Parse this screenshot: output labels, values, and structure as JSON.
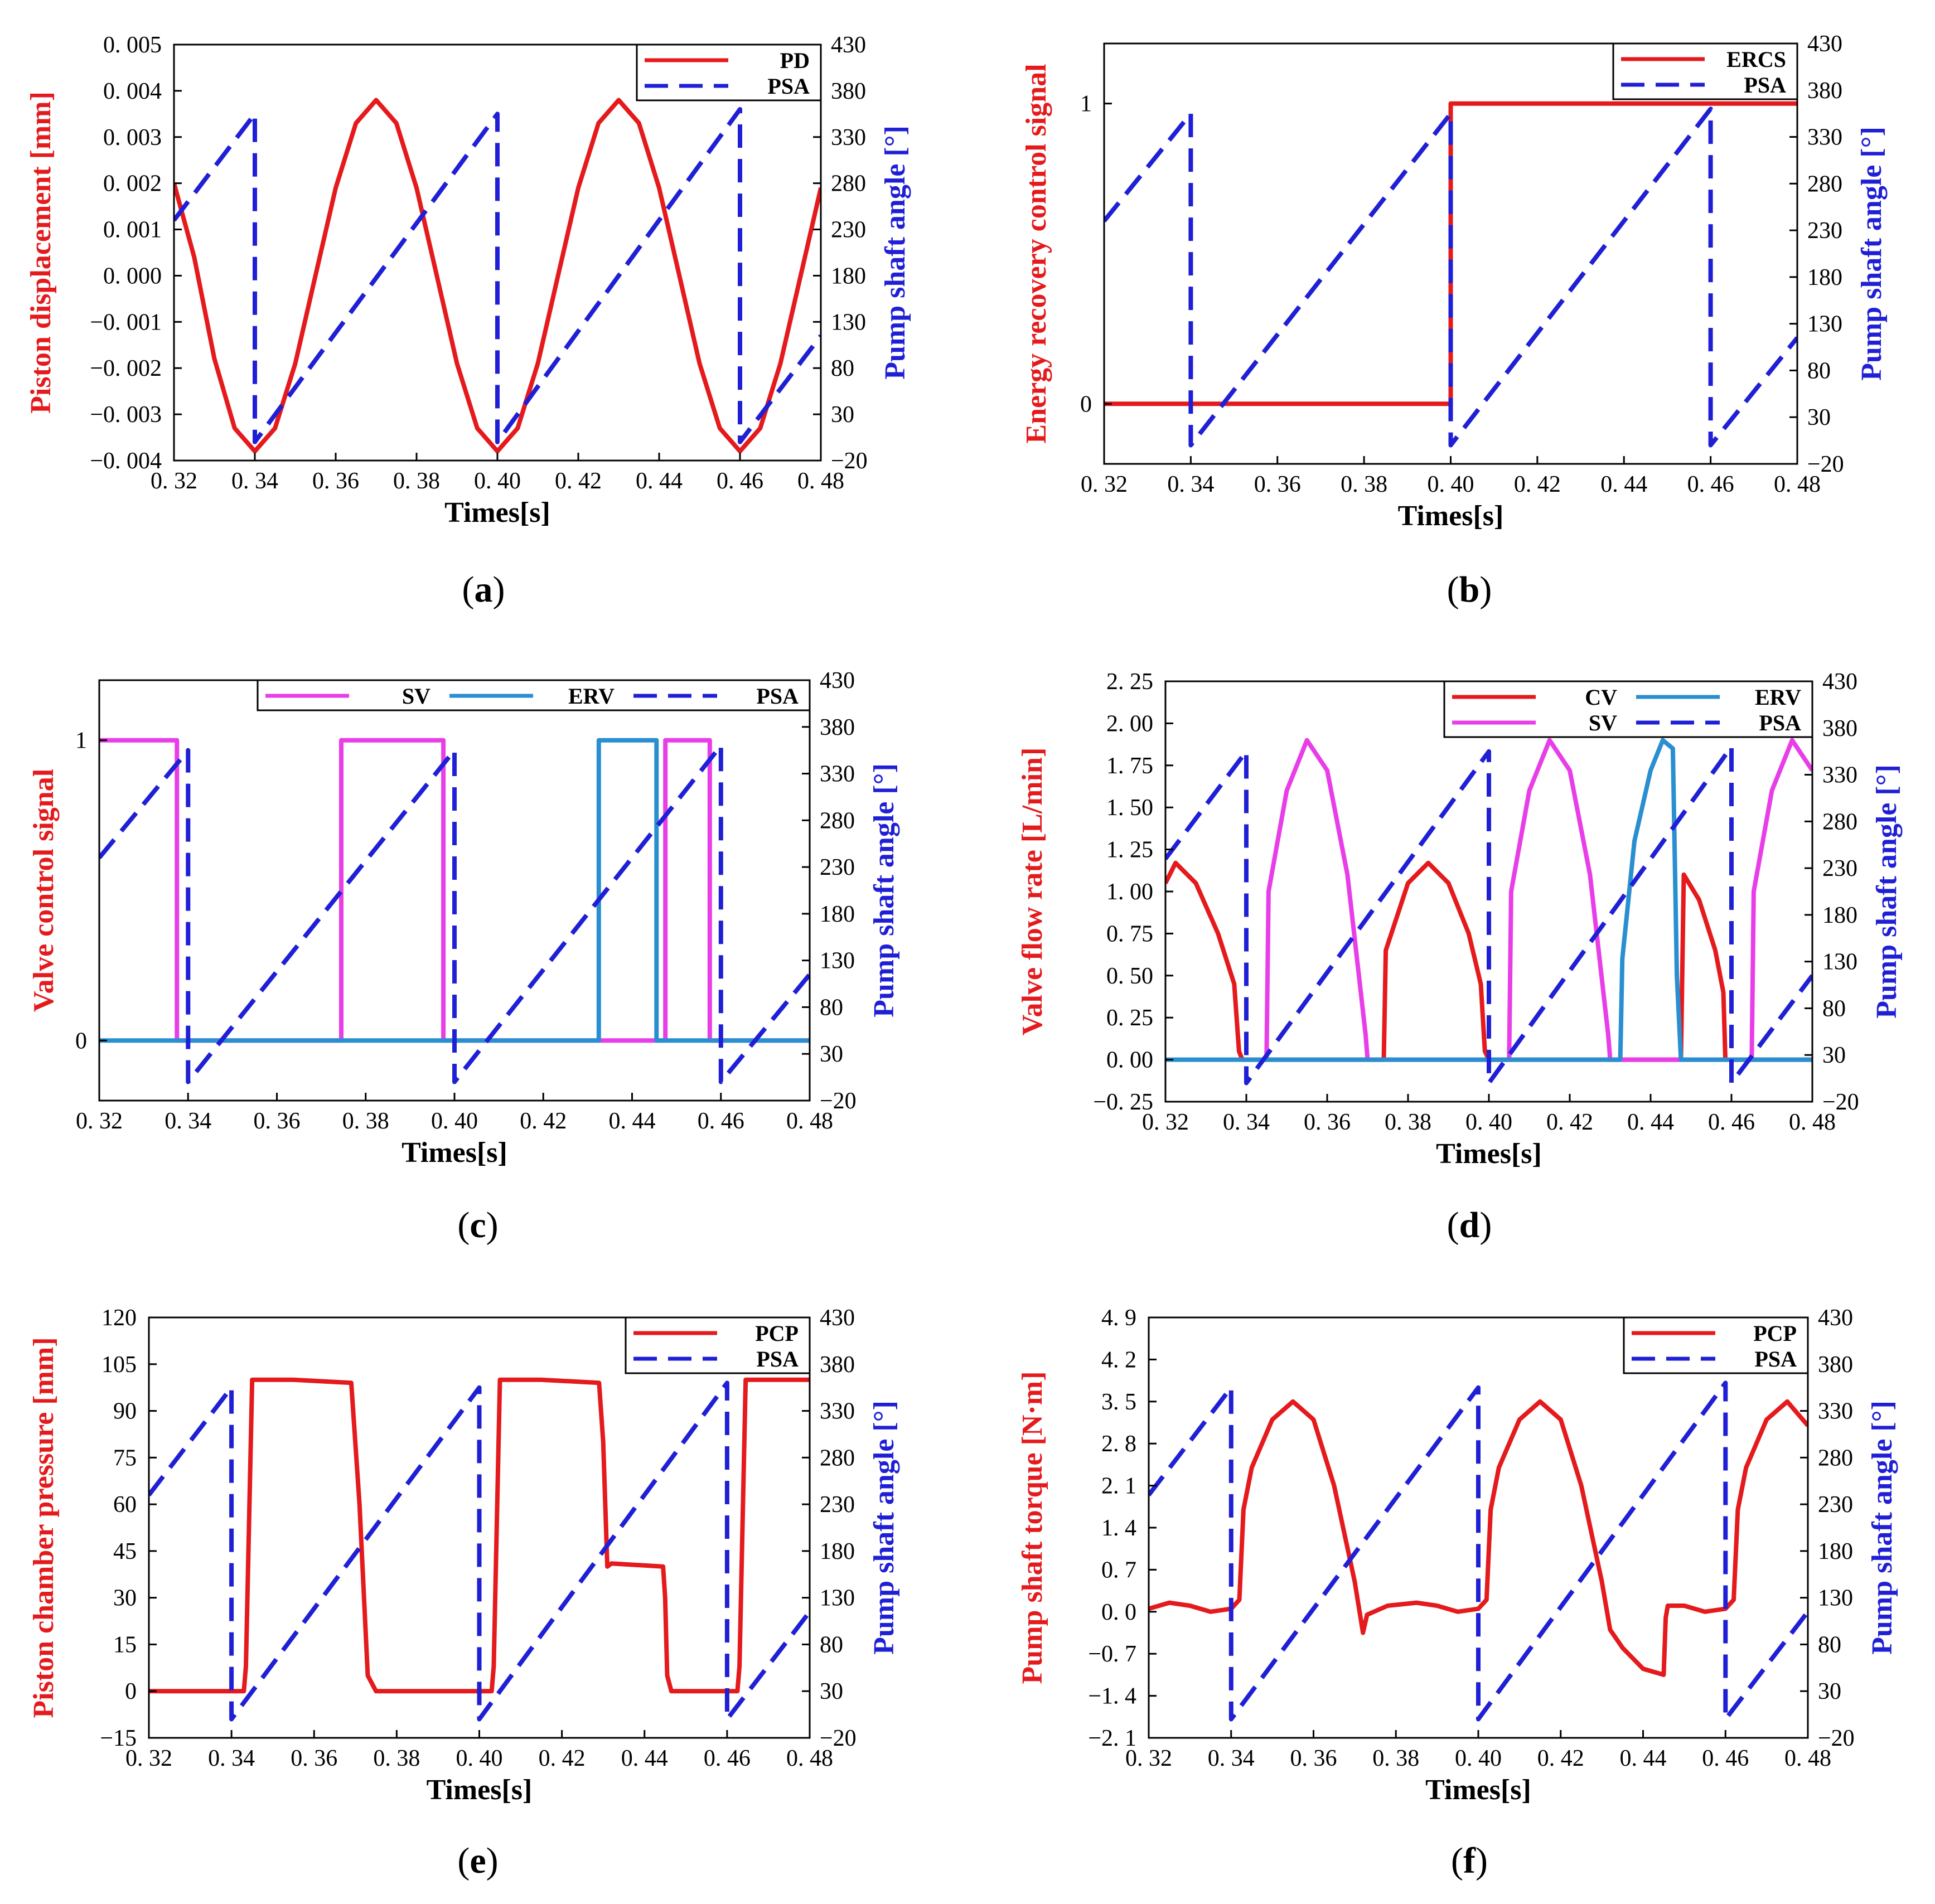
{
  "colors": {
    "red": "#e41a1c",
    "blue": "#1f1fd6",
    "magenta": "#e83ee8",
    "cyan": "#2a8fd0",
    "axis": "#000000"
  },
  "xlabel": "Times[s]",
  "right_ylabel": "Pump shaft angle [°]",
  "x_ticks": [
    "0. 32",
    "0. 34",
    "0. 36",
    "0. 38",
    "0. 40",
    "0. 42",
    "0. 44",
    "0. 46",
    "0. 48"
  ],
  "right_ticks": [
    "430",
    "380",
    "330",
    "280",
    "230",
    "180",
    "130",
    "80",
    "30",
    "−20"
  ],
  "chart_data": [
    {
      "id": "a",
      "caption": "a",
      "type": "line",
      "ylabel": "Piston displacement [mm]",
      "xlim": [
        0.32,
        0.48
      ],
      "ylim": [
        -0.004,
        0.005
      ],
      "y2lim": [
        -20,
        430
      ],
      "y_ticks": [
        "0. 005",
        "0. 004",
        "0. 003",
        "0. 002",
        "0. 001",
        "0. 000",
        "−0. 001",
        "−0. 002",
        "−0. 003",
        "−0. 004"
      ],
      "legend": [
        {
          "name": "PD",
          "style": "solid",
          "color": "#e41a1c"
        },
        {
          "name": "PSA",
          "style": "dash",
          "color": "#1f1fd6"
        }
      ],
      "legend_columns": 1,
      "series": [
        {
          "name": "PD",
          "axis": "left",
          "style": "solid",
          "color": "#e41a1c",
          "x": [
            0.32,
            0.325,
            0.33,
            0.335,
            0.34,
            0.345,
            0.35,
            0.355,
            0.36,
            0.365,
            0.37,
            0.375,
            0.38,
            0.385,
            0.39,
            0.395,
            0.4,
            0.405,
            0.41,
            0.415,
            0.42,
            0.425,
            0.43,
            0.435,
            0.44,
            0.445,
            0.45,
            0.455,
            0.46,
            0.465,
            0.47,
            0.475,
            0.48
          ],
          "y": [
            0.002,
            0.0004,
            -0.0018,
            -0.0033,
            -0.0038,
            -0.0033,
            -0.0019,
            0.0,
            0.0019,
            0.0033,
            0.0038,
            0.0033,
            0.0019,
            0.0,
            -0.0019,
            -0.0033,
            -0.0038,
            -0.0033,
            -0.0019,
            0.0,
            0.0019,
            0.0033,
            0.0038,
            0.0033,
            0.0019,
            0.0,
            -0.0019,
            -0.0033,
            -0.0038,
            -0.0033,
            -0.0019,
            0.0,
            0.0019
          ]
        },
        {
          "name": "PSA",
          "axis": "right",
          "style": "dash",
          "color": "#1f1fd6",
          "x": [
            0.32,
            0.34,
            0.34,
            0.4,
            0.4,
            0.46,
            0.46,
            0.48
          ],
          "y": [
            240,
            355,
            0,
            355,
            0,
            360,
            0,
            115
          ]
        }
      ]
    },
    {
      "id": "b",
      "caption": "b",
      "type": "line",
      "ylabel": "Energy recovery control signal",
      "xlim": [
        0.32,
        0.48
      ],
      "ylim": [
        -0.2,
        1.2
      ],
      "y2lim": [
        -20,
        430
      ],
      "y_ticks": [
        "1",
        "0"
      ],
      "y_tick_values": [
        1,
        0
      ],
      "legend": [
        {
          "name": "ERCS",
          "style": "solid",
          "color": "#e41a1c"
        },
        {
          "name": "PSA",
          "style": "dash",
          "color": "#1f1fd6"
        }
      ],
      "legend_columns": 1,
      "series": [
        {
          "name": "ERCS",
          "axis": "left",
          "style": "solid",
          "color": "#e41a1c",
          "x": [
            0.32,
            0.4,
            0.4,
            0.48
          ],
          "y": [
            0,
            0,
            1,
            1
          ]
        },
        {
          "name": "PSA",
          "axis": "right",
          "style": "dash",
          "color": "#1f1fd6",
          "x": [
            0.32,
            0.34,
            0.34,
            0.4,
            0.4,
            0.46,
            0.46,
            0.48
          ],
          "y": [
            240,
            355,
            0,
            355,
            0,
            360,
            0,
            115
          ]
        }
      ]
    },
    {
      "id": "c",
      "caption": "c",
      "type": "line",
      "ylabel": "Valve control signal",
      "xlim": [
        0.32,
        0.48
      ],
      "ylim": [
        -0.2,
        1.2
      ],
      "y2lim": [
        -20,
        430
      ],
      "y_ticks": [
        "1",
        "0"
      ],
      "y_tick_values": [
        1,
        0
      ],
      "legend": [
        {
          "name": "SV",
          "style": "solid",
          "color": "#e83ee8"
        },
        {
          "name": "ERV",
          "style": "solid",
          "color": "#2a8fd0"
        },
        {
          "name": "PSA",
          "style": "dash",
          "color": "#1f1fd6"
        }
      ],
      "legend_columns": 3,
      "series": [
        {
          "name": "SV",
          "axis": "left",
          "style": "solid",
          "color": "#e83ee8",
          "x": [
            0.32,
            0.3375,
            0.3375,
            0.3745,
            0.3745,
            0.3975,
            0.3975,
            0.4475,
            0.4475,
            0.4575,
            0.4575,
            0.48
          ],
          "y": [
            1,
            1,
            0,
            0,
            1,
            1,
            0,
            0,
            1,
            1,
            0,
            0
          ]
        },
        {
          "name": "ERV",
          "axis": "left",
          "style": "solid",
          "color": "#2a8fd0",
          "x": [
            0.32,
            0.4325,
            0.4325,
            0.4455,
            0.4455,
            0.48
          ],
          "y": [
            0,
            0,
            1,
            1,
            0,
            0
          ]
        },
        {
          "name": "PSA",
          "axis": "right",
          "style": "dash",
          "color": "#1f1fd6",
          "x": [
            0.32,
            0.34,
            0.34,
            0.4,
            0.4,
            0.46,
            0.46,
            0.48
          ],
          "y": [
            240,
            355,
            0,
            355,
            0,
            360,
            0,
            115
          ]
        }
      ]
    },
    {
      "id": "d",
      "caption": "d",
      "type": "line",
      "ylabel": "Valve flow rate [L/min]",
      "xlim": [
        0.32,
        0.48
      ],
      "ylim": [
        -0.25,
        2.25
      ],
      "y2lim": [
        -20,
        430
      ],
      "y_ticks": [
        "2. 25",
        "2. 00",
        "1. 75",
        "1. 50",
        "1. 25",
        "1. 00",
        "0. 75",
        "0. 50",
        "0. 25",
        "0. 00",
        "−0. 25"
      ],
      "legend": [
        {
          "name": "CV",
          "style": "solid",
          "color": "#e41a1c"
        },
        {
          "name": "ERV",
          "style": "solid",
          "color": "#2a8fd0"
        },
        {
          "name": "SV",
          "style": "solid",
          "color": "#e83ee8"
        },
        {
          "name": "PSA",
          "style": "dash",
          "color": "#1f1fd6"
        }
      ],
      "legend_columns": 2,
      "series": [
        {
          "name": "CV",
          "axis": "left",
          "style": "solid",
          "color": "#e41a1c",
          "x": [
            0.32,
            0.3225,
            0.3275,
            0.333,
            0.337,
            0.3382,
            0.339,
            0.374,
            0.3745,
            0.38,
            0.385,
            0.39,
            0.395,
            0.398,
            0.399,
            0.4,
            0.4475,
            0.4482,
            0.452,
            0.456,
            0.458,
            0.4585,
            0.48
          ],
          "y": [
            1.05,
            1.17,
            1.05,
            0.75,
            0.45,
            0.05,
            0.0,
            0.0,
            0.65,
            1.05,
            1.17,
            1.05,
            0.75,
            0.45,
            0.05,
            0.0,
            0.0,
            1.1,
            0.95,
            0.65,
            0.4,
            0.0,
            0.0
          ]
        },
        {
          "name": "SV",
          "axis": "left",
          "style": "solid",
          "color": "#e83ee8",
          "x": [
            0.345,
            0.3455,
            0.35,
            0.355,
            0.36,
            0.365,
            0.3695,
            0.37,
            0.405,
            0.4055,
            0.41,
            0.415,
            0.42,
            0.425,
            0.4295,
            0.43,
            0.465,
            0.4655,
            0.47,
            0.475,
            0.48
          ],
          "y": [
            0.0,
            1.0,
            1.6,
            1.9,
            1.72,
            1.1,
            0.15,
            0.0,
            0.0,
            1.0,
            1.6,
            1.9,
            1.72,
            1.1,
            0.15,
            0.0,
            0.0,
            1.0,
            1.6,
            1.9,
            1.72
          ]
        },
        {
          "name": "ERV",
          "axis": "left",
          "style": "solid",
          "color": "#2a8fd0",
          "x": [
            0.32,
            0.4325,
            0.433,
            0.436,
            0.44,
            0.443,
            0.4455,
            0.4465,
            0.4475,
            0.48
          ],
          "y": [
            0.0,
            0.0,
            0.6,
            1.3,
            1.72,
            1.9,
            1.85,
            0.5,
            0.0,
            0.0
          ]
        },
        {
          "name": "PSA",
          "axis": "right",
          "style": "dash",
          "color": "#1f1fd6",
          "x": [
            0.32,
            0.34,
            0.34,
            0.4,
            0.4,
            0.46,
            0.46,
            0.48
          ],
          "y": [
            240,
            355,
            0,
            355,
            0,
            360,
            0,
            115
          ]
        }
      ]
    },
    {
      "id": "e",
      "caption": "e",
      "type": "line",
      "ylabel": "Piston chamber pressure [mm]",
      "xlim": [
        0.32,
        0.48
      ],
      "ylim": [
        -15,
        120
      ],
      "y2lim": [
        -20,
        430
      ],
      "y_ticks": [
        "120",
        "105",
        "90",
        "75",
        "60",
        "45",
        "30",
        "15",
        "0",
        "−15"
      ],
      "legend": [
        {
          "name": "PCP",
          "style": "solid",
          "color": "#e41a1c"
        },
        {
          "name": "PSA",
          "style": "dash",
          "color": "#1f1fd6"
        }
      ],
      "legend_columns": 1,
      "series": [
        {
          "name": "PCP",
          "axis": "left",
          "style": "solid",
          "color": "#e41a1c",
          "x": [
            0.32,
            0.343,
            0.3435,
            0.345,
            0.355,
            0.369,
            0.371,
            0.373,
            0.375,
            0.403,
            0.4035,
            0.405,
            0.415,
            0.429,
            0.43,
            0.431,
            0.432,
            0.4445,
            0.445,
            0.4455,
            0.4465,
            0.4475,
            0.4625,
            0.463,
            0.4645,
            0.48
          ],
          "y": [
            0,
            0,
            8,
            100,
            100,
            99,
            60,
            5,
            0,
            0,
            8,
            100,
            100,
            99,
            80,
            40,
            41,
            40,
            30,
            5,
            0,
            0,
            0,
            8,
            100,
            100
          ]
        },
        {
          "name": "PSA",
          "axis": "right",
          "style": "dash",
          "color": "#1f1fd6",
          "x": [
            0.32,
            0.34,
            0.34,
            0.4,
            0.4,
            0.46,
            0.46,
            0.48
          ],
          "y": [
            240,
            355,
            0,
            355,
            0,
            360,
            0,
            115
          ]
        }
      ]
    },
    {
      "id": "f",
      "caption": "f",
      "type": "line",
      "ylabel": "Pump shaft torque [N·m]",
      "xlim": [
        0.32,
        0.48
      ],
      "ylim": [
        -2.1,
        4.9
      ],
      "y2lim": [
        -20,
        430
      ],
      "y_ticks": [
        "4. 9",
        "4. 2",
        "3. 5",
        "2. 8",
        "2. 1",
        "1. 4",
        "0. 7",
        "0. 0",
        "−0. 7",
        "−1. 4",
        "−2. 1"
      ],
      "legend": [
        {
          "name": "PCP",
          "style": "solid",
          "color": "#e41a1c"
        },
        {
          "name": "PSA",
          "style": "dash",
          "color": "#1f1fd6"
        }
      ],
      "legend_columns": 1,
      "series": [
        {
          "name": "PCP",
          "axis": "left",
          "style": "solid",
          "color": "#e41a1c",
          "x": [
            0.32,
            0.325,
            0.33,
            0.335,
            0.34,
            0.342,
            0.343,
            0.345,
            0.35,
            0.355,
            0.36,
            0.365,
            0.37,
            0.372,
            0.373,
            0.378,
            0.385,
            0.39,
            0.395,
            0.4,
            0.402,
            0.403,
            0.405,
            0.41,
            0.415,
            0.42,
            0.425,
            0.43,
            0.432,
            0.435,
            0.44,
            0.445,
            0.4455,
            0.446,
            0.45,
            0.455,
            0.46,
            0.462,
            0.463,
            0.465,
            0.47,
            0.475,
            0.48
          ],
          "y": [
            0.05,
            0.15,
            0.1,
            0.0,
            0.05,
            0.2,
            1.7,
            2.4,
            3.2,
            3.5,
            3.2,
            2.1,
            0.5,
            -0.35,
            -0.05,
            0.1,
            0.15,
            0.1,
            0.0,
            0.05,
            0.2,
            1.7,
            2.4,
            3.2,
            3.5,
            3.2,
            2.1,
            0.5,
            -0.3,
            -0.6,
            -0.95,
            -1.05,
            -0.1,
            0.1,
            0.1,
            0.0,
            0.05,
            0.2,
            1.7,
            2.4,
            3.2,
            3.5,
            3.1
          ]
        },
        {
          "name": "PSA",
          "axis": "right",
          "style": "dash",
          "color": "#1f1fd6",
          "x": [
            0.32,
            0.34,
            0.34,
            0.4,
            0.4,
            0.46,
            0.46,
            0.48
          ],
          "y": [
            240,
            355,
            0,
            355,
            0,
            360,
            0,
            115
          ]
        }
      ]
    }
  ]
}
